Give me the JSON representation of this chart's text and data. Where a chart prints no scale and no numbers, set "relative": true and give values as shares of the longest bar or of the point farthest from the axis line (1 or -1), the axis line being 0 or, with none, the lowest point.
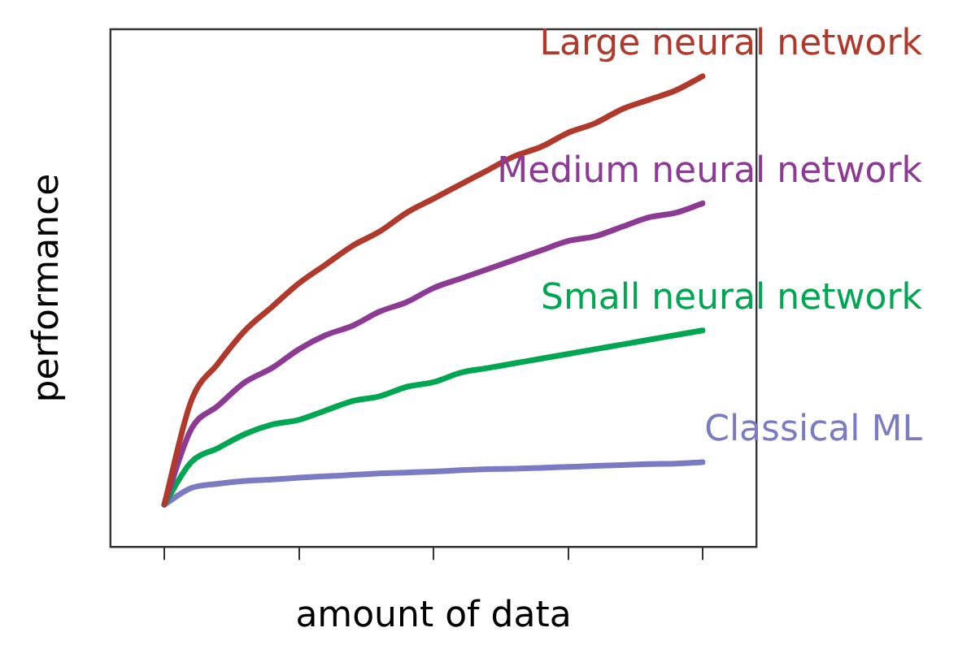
{
  "chart_data": {
    "type": "line",
    "relative": true,
    "xlabel": "amount of data",
    "ylabel": "performance",
    "tick_labels": false,
    "grid": false,
    "legend": false,
    "marker": "none",
    "categories": [
      null,
      null,
      null,
      null,
      null,
      null,
      null,
      null,
      null,
      null,
      null,
      null,
      null,
      null,
      null,
      null,
      null,
      null,
      null,
      null,
      null
    ],
    "series": [
      {
        "name": "Large neural network",
        "color": "#b0392c",
        "values": [
          0.09,
          0.31,
          0.39,
          0.46,
          0.51,
          0.56,
          0.6,
          0.64,
          0.67,
          0.71,
          0.74,
          0.77,
          0.8,
          0.83,
          0.85,
          0.88,
          0.9,
          0.93,
          0.95,
          0.97,
          1
        ]
      },
      {
        "name": "Medium neural network",
        "color": "#8d3a94",
        "values": [
          0.09,
          0.25,
          0.3,
          0.35,
          0.38,
          0.42,
          0.45,
          0.47,
          0.5,
          0.52,
          0.55,
          0.57,
          0.59,
          0.61,
          0.63,
          0.65,
          0.66,
          0.68,
          0.7,
          0.71,
          0.73
        ]
      },
      {
        "name": "Small neural network",
        "color": "#00a651",
        "values": [
          0.09,
          0.18,
          0.21,
          0.24,
          0.26,
          0.27,
          0.29,
          0.31,
          0.32,
          0.34,
          0.35,
          0.37,
          0.38,
          0.39,
          0.4,
          0.41,
          0.42,
          0.43,
          0.44,
          0.45,
          0.46
        ]
      },
      {
        "name": "Classical ML",
        "color": "#7b7bc4",
        "values": [
          0.09,
          0.125,
          0.134,
          0.14,
          0.143,
          0.147,
          0.15,
          0.153,
          0.156,
          0.158,
          0.16,
          0.163,
          0.165,
          0.166,
          0.168,
          0.17,
          0.172,
          0.174,
          0.176,
          0.177,
          0.18
        ]
      }
    ]
  }
}
